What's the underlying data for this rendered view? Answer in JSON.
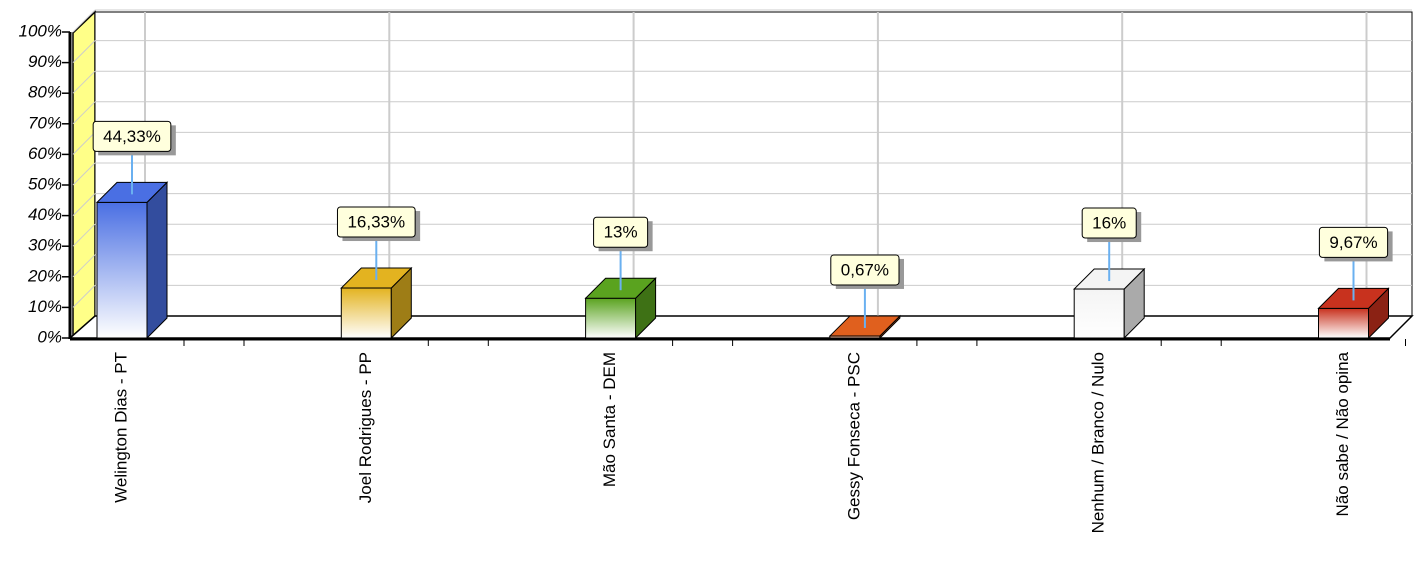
{
  "chart_data": {
    "type": "bar3d",
    "categories": [
      "Welington Dias - PT",
      "Joel Rodrigues - PP",
      "Mão Santa - DEM",
      "Gessy Fonseca - PSC",
      "Nenhum / Branco / Nulo",
      "Não sabe / Não opina"
    ],
    "values": [
      44.33,
      16.33,
      13,
      0.67,
      16,
      9.67
    ],
    "value_labels": [
      "44,33%",
      "16,33%",
      "13%",
      "0,67%",
      "16%",
      "9,67%"
    ],
    "colors": [
      "#4a6fe3",
      "#e3b320",
      "#5aa31f",
      "#e0601e",
      "#f4f4f4",
      "#c8321e"
    ],
    "ylim": [
      0,
      100
    ],
    "yticks": [
      {
        "value": 0,
        "label": "0%"
      },
      {
        "value": 10,
        "label": "10%"
      },
      {
        "value": 20,
        "label": "20%"
      },
      {
        "value": 30,
        "label": "30%"
      },
      {
        "value": 40,
        "label": "40%"
      },
      {
        "value": 50,
        "label": "50%"
      },
      {
        "value": 60,
        "label": "60%"
      },
      {
        "value": 70,
        "label": "70%"
      },
      {
        "value": 80,
        "label": "80%"
      },
      {
        "value": 90,
        "label": "90%"
      },
      {
        "value": 100,
        "label": "100%"
      }
    ],
    "grid": true
  }
}
